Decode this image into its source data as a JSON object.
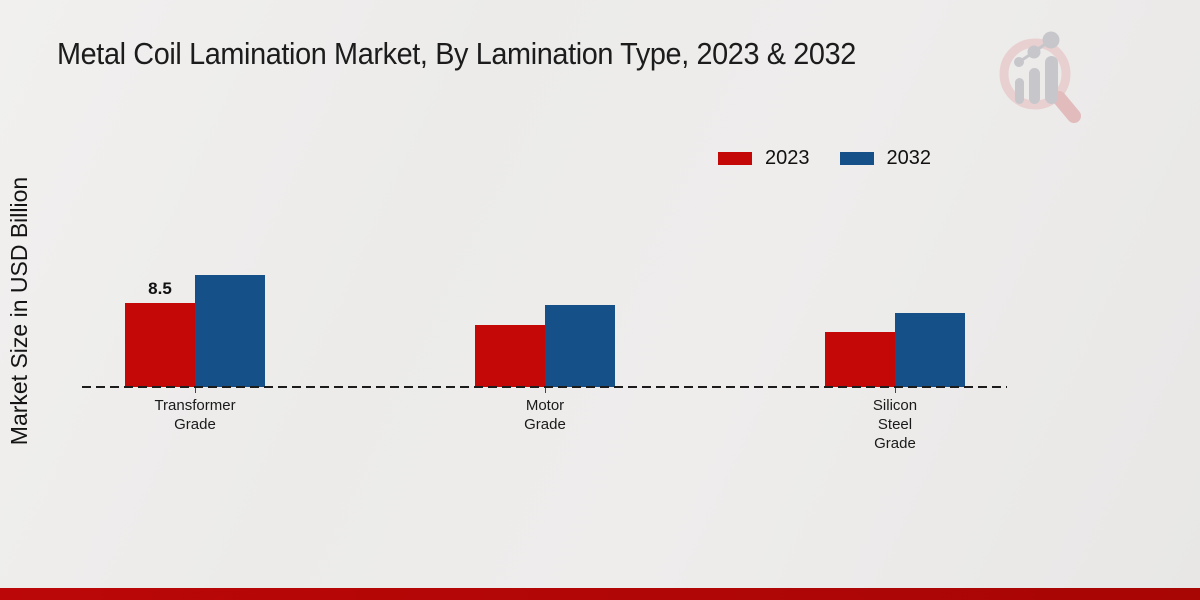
{
  "page": {
    "title": "Metal Coil Lamination Market, By Lamination Type, 2023 & 2032",
    "y_axis_label": "Market Size in USD Billion",
    "logo_icon": "magnifier-bar-chart-logo",
    "footer_bar_color": "#b00606",
    "background_color": "#ebeae9"
  },
  "chart_data": {
    "type": "bar",
    "title": "Metal Coil Lamination Market, By Lamination Type, 2023 & 2032",
    "ylabel": "Market Size in USD Billion",
    "xlabel": "",
    "categories": [
      "Transformer\nGrade",
      "Motor\nGrade",
      "Silicon\nSteel\nGrade"
    ],
    "series": [
      {
        "name": "2023",
        "color": "#c40707",
        "values": [
          8.5,
          6.3,
          5.6
        ]
      },
      {
        "name": "2032",
        "color": "#155089",
        "values": [
          11.3,
          8.3,
          7.5
        ]
      }
    ],
    "annotations": [
      {
        "series_index": 0,
        "category_index": 0,
        "text": "8.5"
      }
    ],
    "ylim": [
      0,
      12
    ],
    "grid": false,
    "legend_position": "top-right",
    "baseline_style": "dashed"
  }
}
